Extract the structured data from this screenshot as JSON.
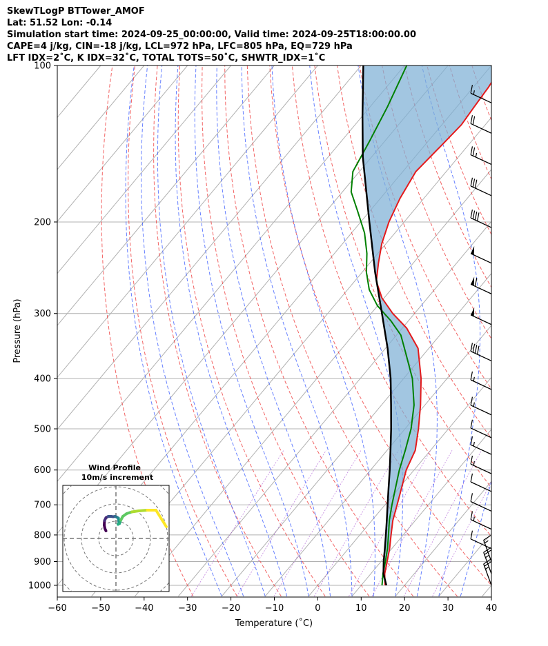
{
  "header": {
    "line1": "SkewTLogP BTTower_AMOF",
    "line2": "Lat: 51.52   Lon: -0.14",
    "line3": "Simulation start time: 2024-09-25_00:00:00, Valid time: 2024-09-25T18:00:00.00",
    "line4": "CAPE=4 j/kg, CIN=-18 j/kg, LCL=972 hPa, LFC=805 hPa, EQ=729 hPa",
    "line5": "LFT IDX=2˚C, K IDX=32˚C, TOTAL TOTS=50˚C, SHWTR_IDX=1˚C"
  },
  "chart_data": {
    "type": "line",
    "title": "SkewTLogP BTTower_AMOF",
    "xlabel": "Temperature (˚C)",
    "ylabel": "Pressure (hPa)",
    "xlim": [
      -60,
      40
    ],
    "ylim": [
      1050,
      100
    ],
    "y_scale": "log",
    "skewed": true,
    "x_ticks": [
      "−60",
      "−50",
      "−40",
      "−30",
      "−20",
      "−10",
      "0",
      "10",
      "20",
      "30",
      "40"
    ],
    "y_ticks": [
      "100",
      "200",
      "300",
      "400",
      "500",
      "600",
      "700",
      "800",
      "900",
      "1000"
    ],
    "grid": true,
    "series": [
      {
        "role": "temperature",
        "color": "#e41a1c",
        "points": [
          [
            1000,
            15.5
          ],
          [
            950,
            13.2
          ],
          [
            900,
            11.4
          ],
          [
            850,
            9.5
          ],
          [
            800,
            7.2
          ],
          [
            750,
            4.8
          ],
          [
            700,
            2.8
          ],
          [
            650,
            0.6
          ],
          [
            600,
            -1.8
          ],
          [
            550,
            -3.5
          ],
          [
            500,
            -6.9
          ],
          [
            450,
            -11.0
          ],
          [
            400,
            -16.0
          ],
          [
            350,
            -22.5
          ],
          [
            320,
            -29.0
          ],
          [
            300,
            -35.0
          ],
          [
            280,
            -40.5
          ],
          [
            260,
            -45.0
          ],
          [
            240,
            -48.0
          ],
          [
            220,
            -51.0
          ],
          [
            200,
            -53.5
          ],
          [
            180,
            -55.5
          ],
          [
            160,
            -57.0
          ],
          [
            140,
            -56.0
          ],
          [
            130,
            -55.5
          ],
          [
            120,
            -56.0
          ],
          [
            110,
            -56.5
          ],
          [
            100,
            -57.5
          ]
        ]
      },
      {
        "role": "dewpoint",
        "color": "#008000",
        "points": [
          [
            1000,
            14.8
          ],
          [
            950,
            12.8
          ],
          [
            900,
            11.0
          ],
          [
            850,
            9.0
          ],
          [
            800,
            6.6
          ],
          [
            750,
            4.0
          ],
          [
            700,
            1.6
          ],
          [
            650,
            -0.8
          ],
          [
            600,
            -3.4
          ],
          [
            550,
            -5.8
          ],
          [
            500,
            -8.6
          ],
          [
            450,
            -12.5
          ],
          [
            400,
            -18.0
          ],
          [
            360,
            -24.0
          ],
          [
            330,
            -29.0
          ],
          [
            310,
            -34.0
          ],
          [
            290,
            -40.0
          ],
          [
            270,
            -45.0
          ],
          [
            250,
            -49.0
          ],
          [
            230,
            -52.5
          ],
          [
            210,
            -57.0
          ],
          [
            190,
            -63.0
          ],
          [
            175,
            -68.0
          ],
          [
            160,
            -71.5
          ],
          [
            140,
            -73.5
          ],
          [
            120,
            -76.0
          ],
          [
            100,
            -79.5
          ]
        ]
      },
      {
        "role": "parcel",
        "color": "#000000",
        "points": [
          [
            1000,
            15.8
          ],
          [
            950,
            12.9
          ],
          [
            900,
            10.6
          ],
          [
            850,
            8.4
          ],
          [
            800,
            6.0
          ],
          [
            750,
            3.4
          ],
          [
            700,
            0.6
          ],
          [
            650,
            -2.4
          ],
          [
            600,
            -5.6
          ],
          [
            550,
            -9.2
          ],
          [
            500,
            -13.2
          ],
          [
            450,
            -17.8
          ],
          [
            400,
            -23.0
          ],
          [
            350,
            -29.5
          ],
          [
            300,
            -37.5
          ],
          [
            250,
            -47.0
          ],
          [
            200,
            -58.0
          ],
          [
            150,
            -72.0
          ],
          [
            125,
            -80.0
          ],
          [
            100,
            -89.5
          ]
        ]
      }
    ],
    "wind_barbs": [
      {
        "pressure": 1000,
        "flags": 0,
        "full": 2,
        "half": 1
      },
      {
        "pressure": 950,
        "flags": 0,
        "full": 2,
        "half": 1
      },
      {
        "pressure": 900,
        "flags": 0,
        "full": 1,
        "half": 1
      },
      {
        "pressure": 850,
        "flags": 0,
        "full": 1,
        "half": 0
      },
      {
        "pressure": 780,
        "flags": 0,
        "full": 1,
        "half": 1
      },
      {
        "pressure": 720,
        "flags": 0,
        "full": 1,
        "half": 0
      },
      {
        "pressure": 660,
        "flags": 0,
        "full": 1,
        "half": 0
      },
      {
        "pressure": 610,
        "flags": 0,
        "full": 1,
        "half": 1
      },
      {
        "pressure": 560,
        "flags": 0,
        "full": 1,
        "half": 1
      },
      {
        "pressure": 520,
        "flags": 0,
        "full": 1,
        "half": 0
      },
      {
        "pressure": 470,
        "flags": 0,
        "full": 1,
        "half": 1
      },
      {
        "pressure": 420,
        "flags": 0,
        "full": 1,
        "half": 1
      },
      {
        "pressure": 370,
        "flags": 0,
        "full": 4,
        "half": 0
      },
      {
        "pressure": 315,
        "flags": 1,
        "full": 0,
        "half": 0
      },
      {
        "pressure": 275,
        "flags": 1,
        "full": 1,
        "half": 0
      },
      {
        "pressure": 240,
        "flags": 1,
        "full": 0,
        "half": 0
      },
      {
        "pressure": 205,
        "flags": 0,
        "full": 4,
        "half": 0
      },
      {
        "pressure": 178,
        "flags": 0,
        "full": 3,
        "half": 0
      },
      {
        "pressure": 155,
        "flags": 0,
        "full": 2,
        "half": 1
      },
      {
        "pressure": 135,
        "flags": 0,
        "full": 2,
        "half": 0
      },
      {
        "pressure": 118,
        "flags": 0,
        "full": 1,
        "half": 1
      }
    ],
    "hodograph": {
      "title": "Wind Profile",
      "subtitle": "10m/s increment",
      "points": [
        [
          0.5,
          0.8
        ],
        [
          0.2,
          1.5
        ],
        [
          0.0,
          2.5
        ],
        [
          0.1,
          3.8
        ],
        [
          0.5,
          4.6
        ],
        [
          1.2,
          5.0
        ],
        [
          2.0,
          5.0
        ],
        [
          2.6,
          4.9
        ],
        [
          3.2,
          5.0
        ],
        [
          3.6,
          4.8
        ],
        [
          4.1,
          4.5
        ],
        [
          4.2,
          3.8
        ],
        [
          4.3,
          3.2
        ],
        [
          4.0,
          2.7
        ],
        [
          4.4,
          2.9
        ],
        [
          4.8,
          3.9
        ],
        [
          5.4,
          5.0
        ],
        [
          6.5,
          5.8
        ],
        [
          8.0,
          6.3
        ],
        [
          10.0,
          6.6
        ],
        [
          12.5,
          6.8
        ],
        [
          15.0,
          6.8
        ],
        [
          18.0,
          2.0
        ]
      ]
    }
  }
}
